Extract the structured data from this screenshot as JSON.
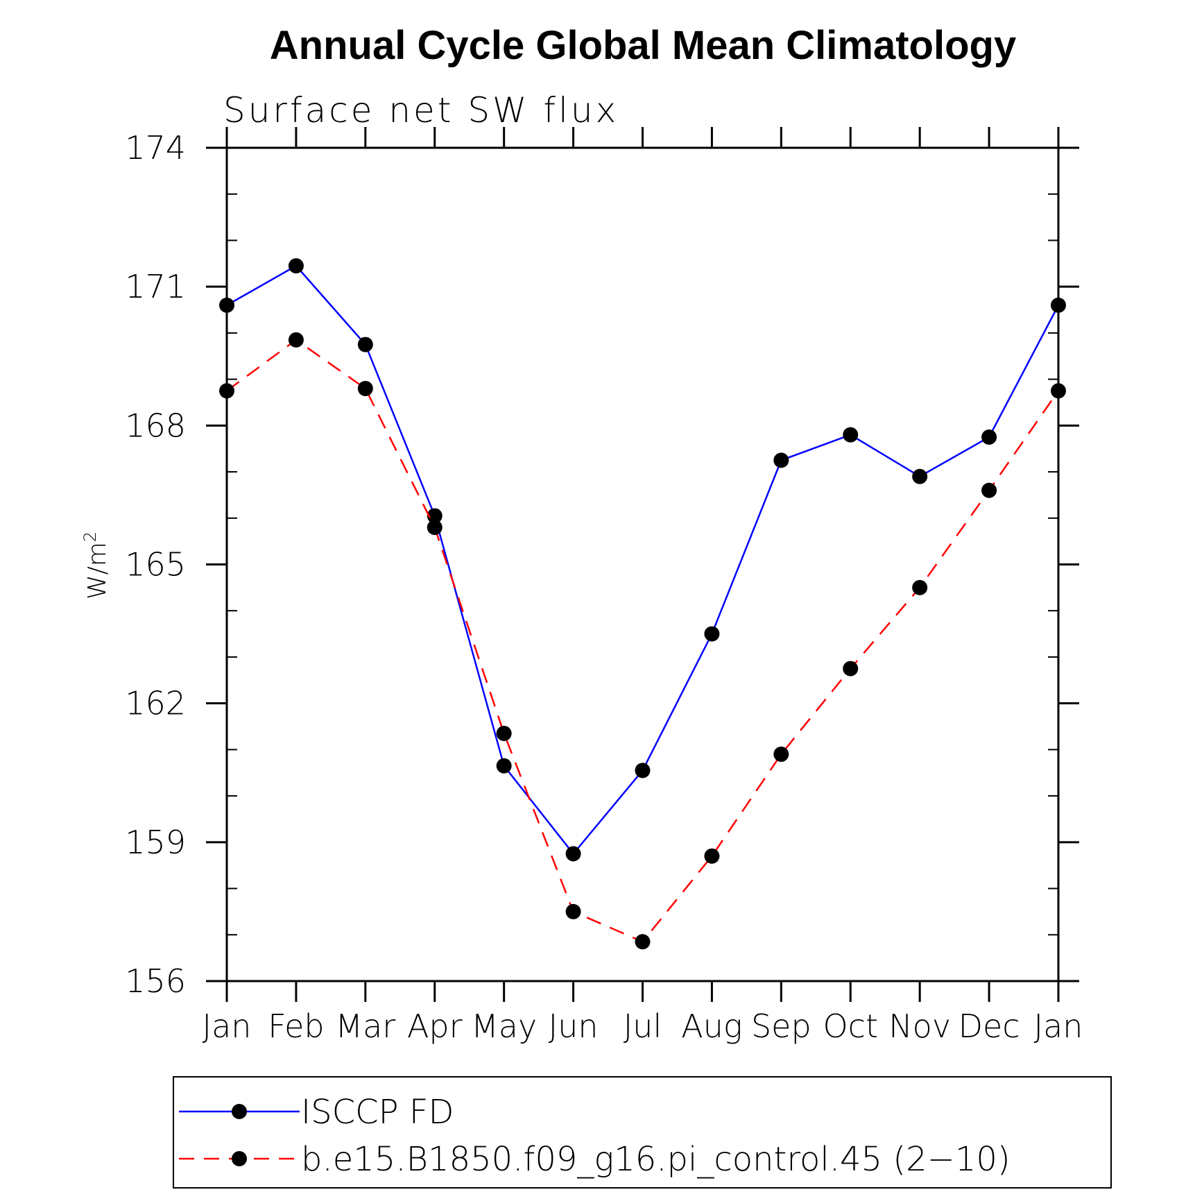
{
  "chart_data": {
    "type": "line",
    "title": "Annual Cycle Global Mean Climatology",
    "subtitle": "Surface net SW flux",
    "ylabel": "W/m",
    "ylabel_superscript": "2",
    "xlabel": "",
    "categories": [
      "Jan",
      "Feb",
      "Mar",
      "Apr",
      "May",
      "Jun",
      "Jul",
      "Aug",
      "Sep",
      "Oct",
      "Nov",
      "Dec",
      "Jan"
    ],
    "ylim": [
      156,
      174
    ],
    "yticks": [
      "156",
      "159",
      "162",
      "165",
      "168",
      "171",
      "174"
    ],
    "grid": false,
    "legend_position": "bottom",
    "series": [
      {
        "name": "ISCCP FD",
        "color": "#0000ff",
        "line_style": "solid",
        "marker": "filled-circle",
        "values": [
          170.6,
          171.45,
          169.75,
          166.05,
          160.65,
          158.75,
          160.55,
          163.5,
          167.25,
          167.8,
          166.9,
          167.75,
          170.6
        ]
      },
      {
        "name": "b.e15.B1850.f09_g16.pi_control.45 (2−10)",
        "color": "#ff0000",
        "line_style": "dashed",
        "marker": "filled-circle",
        "values": [
          168.75,
          169.85,
          168.8,
          165.8,
          161.35,
          157.5,
          156.85,
          158.7,
          160.9,
          162.75,
          164.5,
          166.6,
          168.75
        ]
      }
    ]
  }
}
